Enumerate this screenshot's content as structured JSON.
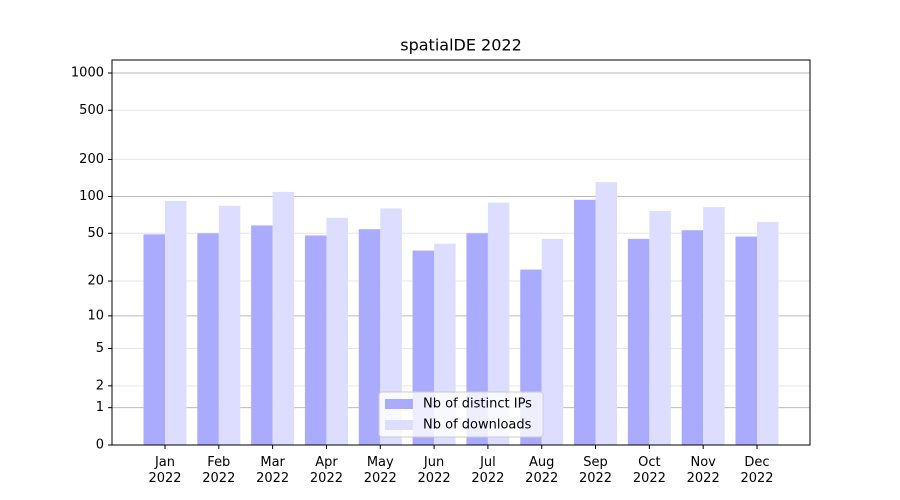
{
  "chart_data": {
    "type": "bar",
    "title": "spatialDE 2022",
    "categories": [
      "Jan\n2022",
      "Feb\n2022",
      "Mar\n2022",
      "Apr\n2022",
      "May\n2022",
      "Jun\n2022",
      "Jul\n2022",
      "Aug\n2022",
      "Sep\n2022",
      "Oct\n2022",
      "Nov\n2022",
      "Dec\n2022"
    ],
    "series": [
      {
        "name": "Nb of distinct IPs",
        "color": "#aaaaff",
        "values": [
          49,
          50,
          58,
          48,
          54,
          36,
          50,
          25,
          94,
          45,
          53,
          47
        ]
      },
      {
        "name": "Nb of downloads",
        "color": "#ddddff",
        "values": [
          92,
          84,
          109,
          67,
          80,
          41,
          89,
          45,
          131,
          76,
          82,
          62
        ]
      }
    ],
    "yscale": "log1p",
    "ylim": [
      0,
      1273
    ],
    "yticks": [
      0,
      1,
      2,
      5,
      10,
      20,
      50,
      100,
      200,
      500,
      1000
    ],
    "grid": true,
    "legend": "lower center"
  }
}
